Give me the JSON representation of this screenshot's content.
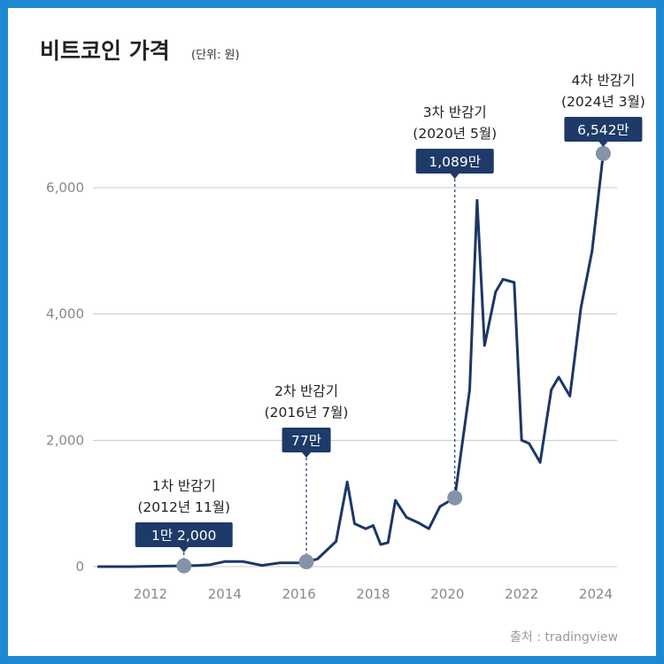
{
  "title": "비트코인 가격",
  "unit_note": "(단위: 원)",
  "source": "출처 : tradingview",
  "colors": {
    "border": "#1e88d2",
    "line": "#1c3766",
    "label_box": "#1e3a68",
    "marker": "#8593aa"
  },
  "chart_data": {
    "type": "line",
    "title": "비트코인 가격",
    "ylabel": "(단위: 원)",
    "xlim": [
      2010.6,
      2025.3
    ],
    "ylim": [
      0,
      7000
    ],
    "y_ticks": [
      "0",
      "2,000",
      "4,000",
      "6,000"
    ],
    "y_tick_values": [
      0,
      2000,
      4000,
      6000
    ],
    "x_ticks": [
      "2012",
      "2014",
      "2016",
      "2018",
      "2020",
      "2022",
      "2024"
    ],
    "x_tick_values": [
      2012,
      2014,
      2016,
      2018,
      2020,
      2022,
      2024
    ],
    "grid": true,
    "series": [
      {
        "x": [
          2010.6,
          2011.5,
          2012.0,
          2012.9,
          2013.3,
          2013.6,
          2014.0,
          2014.5,
          2015.0,
          2015.5,
          2016.0,
          2016.2,
          2016.5,
          2017.0,
          2017.3,
          2017.5,
          2017.8,
          2018.0,
          2018.2,
          2018.4,
          2018.6,
          2018.9,
          2019.2,
          2019.5,
          2019.8,
          2020.2,
          2020.6,
          2020.8,
          2021.0,
          2021.3,
          2021.5,
          2021.8,
          2022.0,
          2022.2,
          2022.5,
          2022.8,
          2023.0,
          2023.3,
          2023.6,
          2023.9,
          2024.2
        ],
        "y": [
          0,
          0,
          5,
          12,
          20,
          30,
          80,
          80,
          20,
          60,
          60,
          77,
          120,
          400,
          1340,
          680,
          600,
          650,
          350,
          380,
          1050,
          780,
          700,
          600,
          950,
          1089,
          2800,
          5800,
          3500,
          4350,
          4550,
          4500,
          2000,
          1950,
          1650,
          2800,
          3000,
          2700,
          4100,
          5000,
          6542
        ]
      }
    ],
    "annotations": [
      {
        "title": "1차 반감기",
        "date": "(2012년 11월)",
        "value_label": "1만 2,000",
        "x": 2012.9,
        "y": 12
      },
      {
        "title": "2차 반감기",
        "date": "(2016년 7월)",
        "value_label": "77만",
        "x": 2016.2,
        "y": 77
      },
      {
        "title": "3차 반감기",
        "date": "(2020년 5월)",
        "value_label": "1,089만",
        "x": 2020.2,
        "y": 1089
      },
      {
        "title": "4차 반감기",
        "date": "(2024년 3월)",
        "value_label": "6,542만",
        "x": 2024.2,
        "y": 6542
      }
    ]
  }
}
